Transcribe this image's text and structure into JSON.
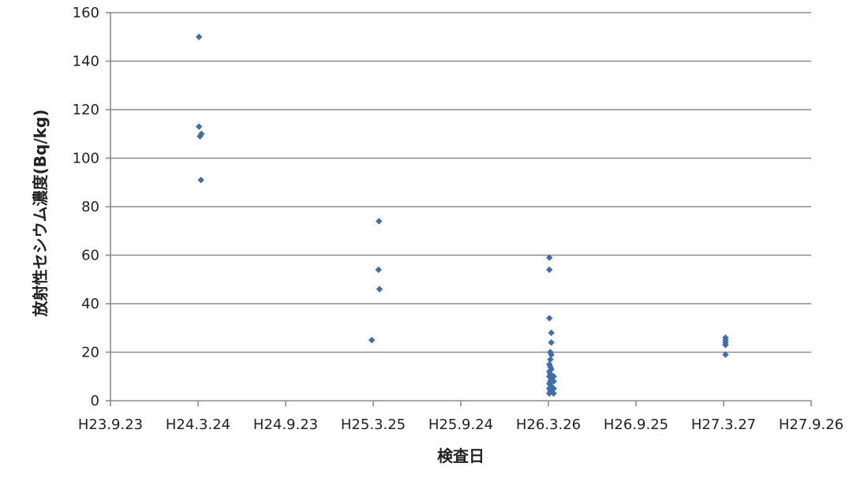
{
  "chart_data": {
    "type": "scatter",
    "title": "",
    "xlabel": "検査日",
    "ylabel": "放射性セシウム濃度(Bq/kg)",
    "x_ticks": [
      "H23.9.23",
      "H24.3.24",
      "H24.9.23",
      "H25.3.25",
      "H25.9.24",
      "H26.3.26",
      "H26.9.25",
      "H27.3.27",
      "H27.9.26"
    ],
    "x_tick_dates": [
      "2011-09-23",
      "2012-03-24",
      "2012-09-23",
      "2013-03-25",
      "2013-09-24",
      "2014-03-26",
      "2014-09-25",
      "2015-03-27",
      "2015-09-26"
    ],
    "xlim": [
      "2011-09-23",
      "2015-09-26"
    ],
    "ylim": [
      0,
      160
    ],
    "y_ticks": [
      0,
      20,
      40,
      60,
      80,
      100,
      120,
      140,
      160
    ],
    "grid": "horizontal",
    "legend": "none",
    "marker": "diamond",
    "colors": {
      "marker": "#3b6fb0",
      "grid": "#8c8c8c",
      "text": "#222222"
    },
    "series": [
      {
        "points": [
          {
            "x": "2012-03-26",
            "y": 150
          },
          {
            "x": "2012-03-26",
            "y": 113
          },
          {
            "x": "2012-03-28",
            "y": 109
          },
          {
            "x": "2012-03-31",
            "y": 110
          },
          {
            "x": "2012-03-30",
            "y": 91
          },
          {
            "x": "2013-04-06",
            "y": 74
          },
          {
            "x": "2013-04-05",
            "y": 54
          },
          {
            "x": "2013-04-07",
            "y": 46
          },
          {
            "x": "2013-03-22",
            "y": 25
          },
          {
            "x": "2014-03-28",
            "y": 59
          },
          {
            "x": "2014-03-28",
            "y": 54
          },
          {
            "x": "2014-03-28",
            "y": 34
          },
          {
            "x": "2014-04-01",
            "y": 28
          },
          {
            "x": "2014-04-01",
            "y": 24
          },
          {
            "x": "2014-03-30",
            "y": 20
          },
          {
            "x": "2014-04-01",
            "y": 19
          },
          {
            "x": "2014-03-30",
            "y": 17
          },
          {
            "x": "2014-03-28",
            "y": 15
          },
          {
            "x": "2014-03-30",
            "y": 14
          },
          {
            "x": "2014-04-01",
            "y": 13
          },
          {
            "x": "2014-03-28",
            "y": 12
          },
          {
            "x": "2014-03-30",
            "y": 11
          },
          {
            "x": "2014-04-06",
            "y": 10
          },
          {
            "x": "2014-03-28",
            "y": 10
          },
          {
            "x": "2014-04-01",
            "y": 9
          },
          {
            "x": "2014-03-30",
            "y": 8
          },
          {
            "x": "2014-04-06",
            "y": 8
          },
          {
            "x": "2014-03-28",
            "y": 7
          },
          {
            "x": "2014-04-01",
            "y": 6
          },
          {
            "x": "2014-04-06",
            "y": 5
          },
          {
            "x": "2014-03-28",
            "y": 5
          },
          {
            "x": "2014-03-30",
            "y": 4
          },
          {
            "x": "2014-04-01",
            "y": 4
          },
          {
            "x": "2014-04-06",
            "y": 3
          },
          {
            "x": "2014-03-28",
            "y": 3
          },
          {
            "x": "2015-03-31",
            "y": 26
          },
          {
            "x": "2015-03-31",
            "y": 25
          },
          {
            "x": "2015-03-31",
            "y": 24
          },
          {
            "x": "2015-03-31",
            "y": 23
          },
          {
            "x": "2015-03-31",
            "y": 19
          }
        ]
      }
    ]
  }
}
